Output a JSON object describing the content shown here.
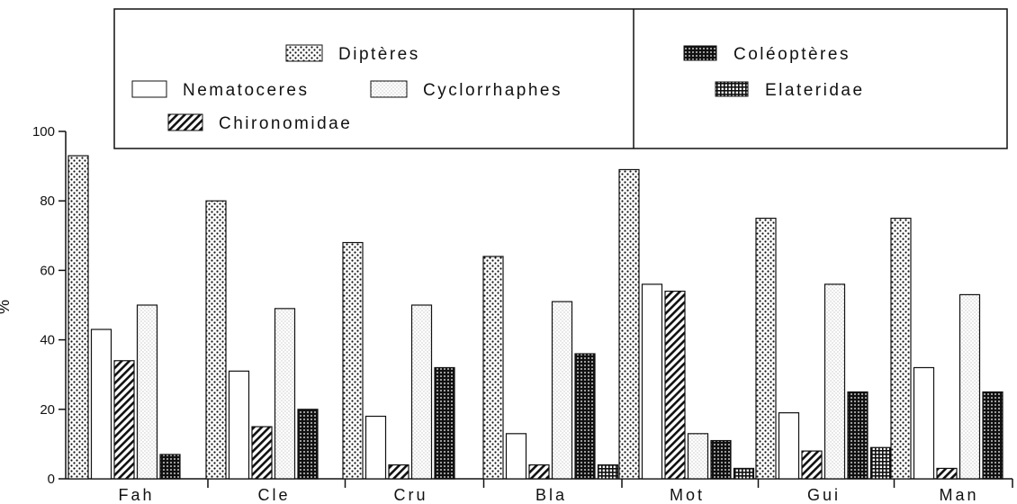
{
  "chart_data": {
    "type": "bar",
    "ylabel": "%",
    "ylim": [
      0,
      100
    ],
    "yticks": [
      0,
      20,
      40,
      60,
      80,
      100
    ],
    "categories": [
      "Fah",
      "Cle",
      "Cru",
      "Bla",
      "Mot",
      "Gui",
      "Man"
    ],
    "series": [
      {
        "name": "Diptères",
        "pattern": "dots",
        "values": [
          93,
          80,
          68,
          64,
          89,
          75,
          75
        ]
      },
      {
        "name": "Nematoceres",
        "pattern": "white",
        "values": [
          43,
          31,
          18,
          13,
          56,
          19,
          32
        ]
      },
      {
        "name": "Chironomidae",
        "pattern": "hatch",
        "values": [
          34,
          15,
          4,
          4,
          54,
          8,
          3
        ]
      },
      {
        "name": "Cyclorrhaphes",
        "pattern": "lightdots",
        "values": [
          50,
          49,
          50,
          51,
          13,
          56,
          53
        ]
      },
      {
        "name": "Coléoptères",
        "pattern": "dark",
        "values": [
          7,
          20,
          32,
          36,
          11,
          25,
          25
        ]
      },
      {
        "name": "Elateridae",
        "pattern": "grid",
        "values": [
          null,
          null,
          null,
          4,
          3,
          9,
          null
        ]
      }
    ],
    "legend": {
      "placement": "top",
      "left_group": [
        [
          "Diptères"
        ],
        [
          "Nematoceres",
          "Cyclorrhaphes"
        ],
        [
          "Chironomidae"
        ]
      ],
      "right_group": [
        [
          "Coléoptères"
        ],
        [
          "Elateridae"
        ]
      ]
    },
    "grid": false
  }
}
